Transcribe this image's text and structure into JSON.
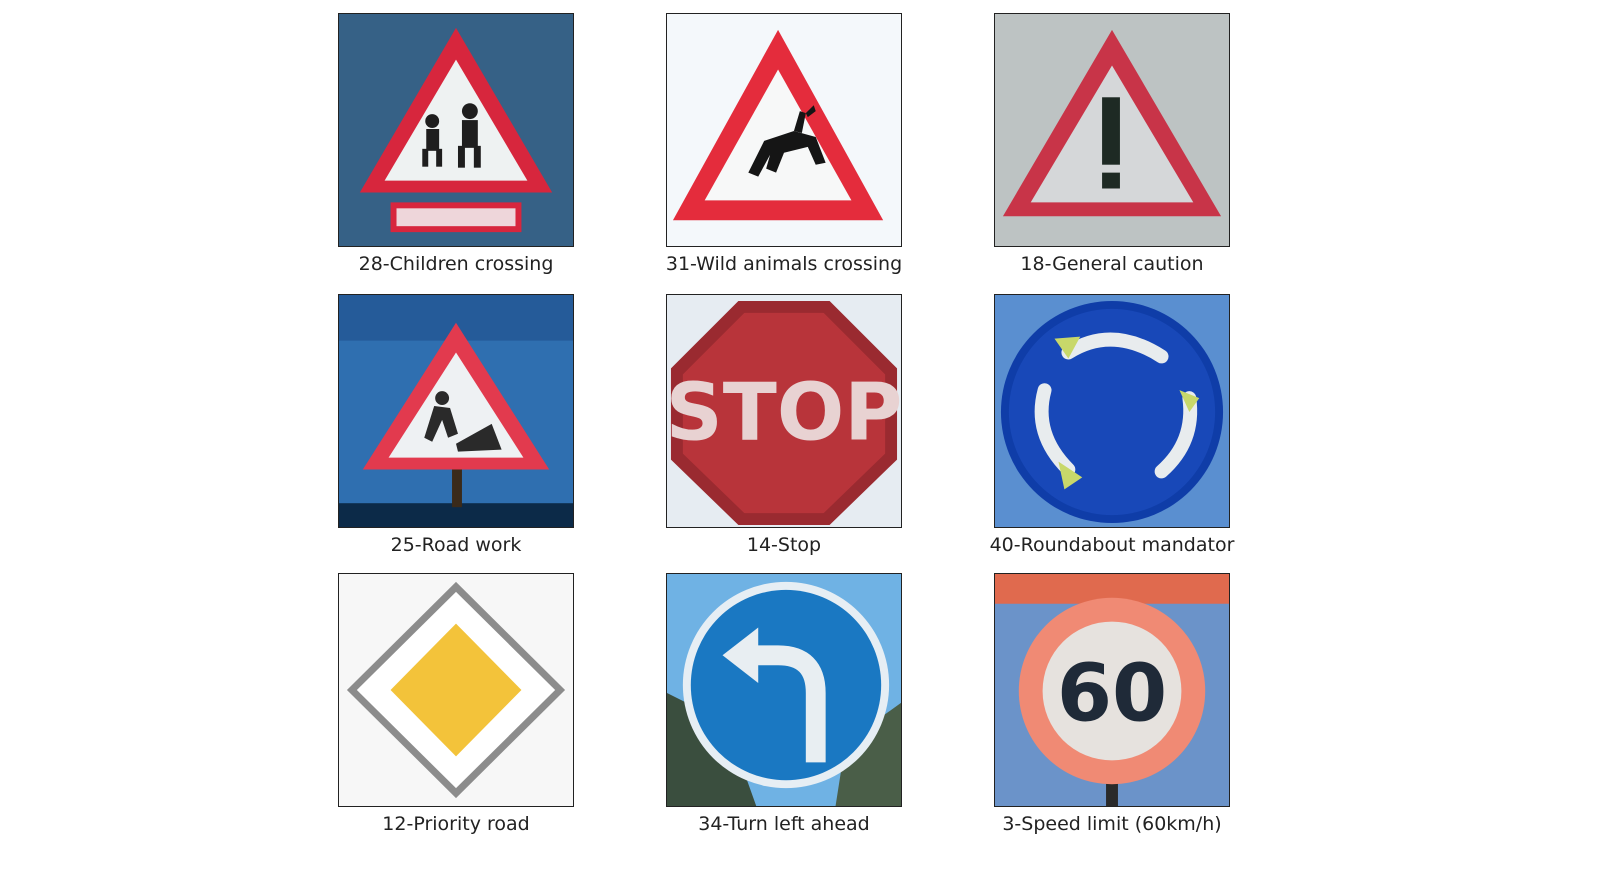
{
  "grid": {
    "tiles": [
      {
        "label": "28-Children crossing",
        "sign": "children-crossing",
        "bg": "#3d6b8c"
      },
      {
        "label": "31-Wild animals crossing",
        "sign": "wild-animals-crossing",
        "bg": "#f4f8fb"
      },
      {
        "label": "18-General caution",
        "sign": "general-caution",
        "bg": "#c9cccd"
      },
      {
        "label": "25-Road work",
        "sign": "road-work",
        "bg": "#2f6fb0"
      },
      {
        "label": "14-Stop",
        "sign": "stop",
        "bg": "#e6ecf2",
        "text": "STOP"
      },
      {
        "label": "40-Roundabout mandator",
        "sign": "roundabout-mandatory",
        "bg": "#5a8fd0"
      },
      {
        "label": "12-Priority road",
        "sign": "priority-road",
        "bg": "#f7f7f7"
      },
      {
        "label": "34-Turn left ahead",
        "sign": "turn-left-ahead",
        "bg": "#6fb2e4"
      },
      {
        "label": "3-Speed limit (60km/h)",
        "sign": "speed-limit-60",
        "bg": "#6b93c9",
        "text": "60"
      }
    ]
  }
}
